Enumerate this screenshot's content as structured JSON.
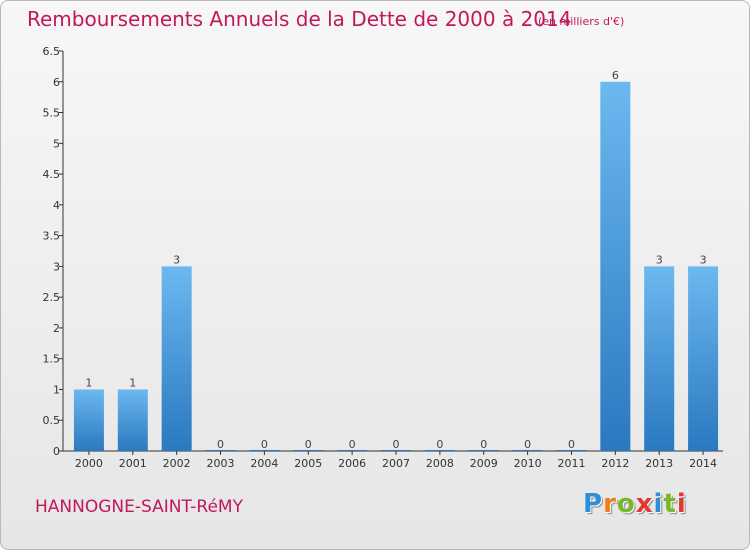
{
  "title": "Remboursements Annuels de la Dette de 2000 à 2014",
  "subtitle": "(en milliers d'€)",
  "commune": "HANNOGNE-SAINT-RéMY",
  "logo": {
    "letters": [
      "P",
      "r",
      "o",
      "x",
      "i",
      "t",
      "i"
    ],
    "colors": [
      "#2e8fd8",
      "#ef7d1a",
      "#78b82a",
      "#e23a2e",
      "#2e8fd8",
      "#78b82a",
      "#e23a2e"
    ]
  },
  "colors": {
    "bar_light": "#6cb8f0",
    "bar_dark": "#2a78bf",
    "title": "#c2185b"
  },
  "chart_data": {
    "type": "bar",
    "categories": [
      "2000",
      "2001",
      "2002",
      "2003",
      "2004",
      "2005",
      "2006",
      "2007",
      "2008",
      "2009",
      "2010",
      "2011",
      "2012",
      "2013",
      "2014"
    ],
    "values": [
      1,
      1,
      3,
      0,
      0,
      0,
      0,
      0,
      0,
      0,
      0,
      0,
      6,
      3,
      3
    ],
    "data_labels": [
      "1",
      "1",
      "3",
      "0",
      "0",
      "0",
      "0",
      "0",
      "0",
      "0",
      "0",
      "0",
      "6",
      "3",
      "3"
    ],
    "y_ticks": [
      "0",
      "0.5",
      "1",
      "1.5",
      "2",
      "2.5",
      "3",
      "3.5",
      "4",
      "4.5",
      "5",
      "5.5",
      "6",
      "6.5"
    ],
    "ylim": [
      0,
      6.5
    ],
    "grid": false,
    "legend": "none"
  }
}
